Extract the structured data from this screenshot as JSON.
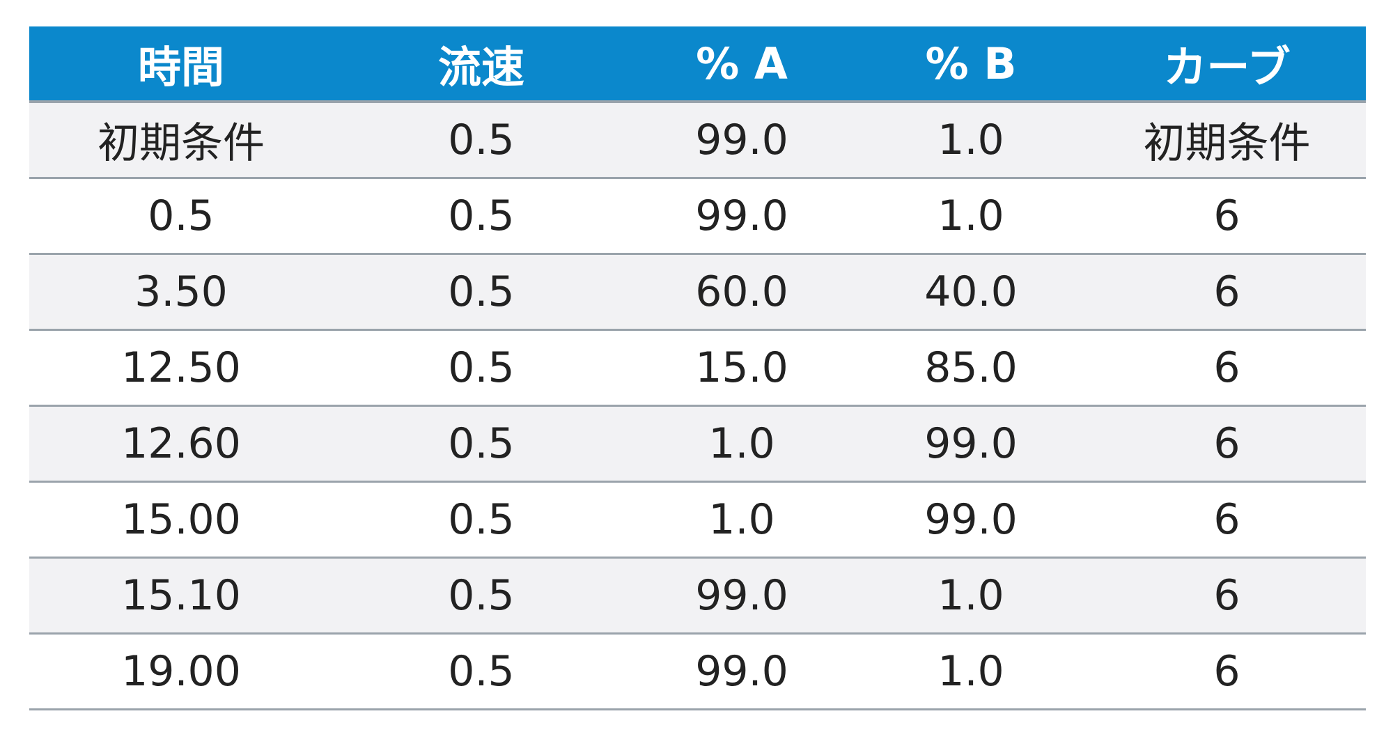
{
  "table": {
    "headers": [
      "時間",
      "流速",
      "% A",
      "% B",
      "カーブ"
    ],
    "rows": [
      [
        "初期条件",
        "0.5",
        "99.0",
        "1.0",
        "初期条件"
      ],
      [
        "0.5",
        "0.5",
        "99.0",
        "1.0",
        "6"
      ],
      [
        "3.50",
        "0.5",
        "60.0",
        "40.0",
        "6"
      ],
      [
        "12.50",
        "0.5",
        "15.0",
        "85.0",
        "6"
      ],
      [
        "12.60",
        "0.5",
        "1.0",
        "99.0",
        "6"
      ],
      [
        "15.00",
        "0.5",
        "1.0",
        "99.0",
        "6"
      ],
      [
        "15.10",
        "0.5",
        "99.0",
        "1.0",
        "6"
      ],
      [
        "19.00",
        "0.5",
        "99.0",
        "1.0",
        "6"
      ]
    ]
  },
  "colors": {
    "header_background": "#0b88cc",
    "header_text": "#ffffff",
    "row_shaded": "#f2f2f4",
    "row_plain": "#ffffff",
    "rule": "#9aa3ab",
    "body_text": "#222222"
  }
}
